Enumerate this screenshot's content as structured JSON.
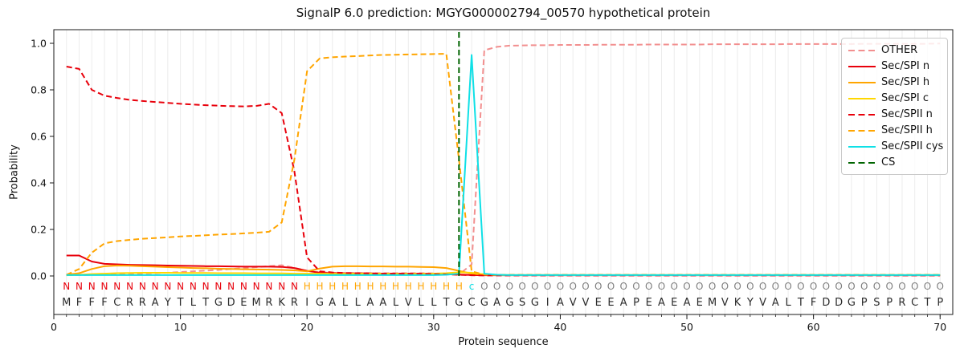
{
  "title": "SignalP 6.0 prediction: MGYG000002794_00570 hypothetical protein",
  "axes": {
    "xlabel": "Protein sequence",
    "ylabel": "Probability",
    "x_ticks": [
      0,
      10,
      20,
      30,
      40,
      50,
      60,
      70
    ],
    "y_ticks": [
      0.0,
      0.2,
      0.4,
      0.6,
      0.8,
      1.0
    ],
    "xlim": [
      0,
      71
    ],
    "ylim_drawn": [
      -0.17,
      1.06
    ],
    "grid": "vertical-per-residue"
  },
  "legend": {
    "position": "upper right",
    "items": [
      {
        "label": "OTHER",
        "color": "#f28f8f",
        "dash": true
      },
      {
        "label": "Sec/SPI n",
        "color": "#e8000b",
        "dash": false
      },
      {
        "label": "Sec/SPI h",
        "color": "#ffa500",
        "dash": false
      },
      {
        "label": "Sec/SPI c",
        "color": "#ffd700",
        "dash": false
      },
      {
        "label": "Sec/SPII n",
        "color": "#e8000b",
        "dash": true
      },
      {
        "label": "Sec/SPII h",
        "color": "#ffa500",
        "dash": true
      },
      {
        "label": "Sec/SPII cys",
        "color": "#0fe0e6",
        "dash": false
      },
      {
        "label": "CS",
        "color": "#006400",
        "dash": true
      }
    ]
  },
  "sequence": {
    "residues": "MFFFCRRAYTLTGDEMRKRIGALLAALVLLTGCGAGSGIAVVEEAPEAEAEMVKYVALTFDDGPSPRCTP",
    "region_labels": "NNNNNNNNNNNNNNNNNNNHHHHHHHHHHHHHcOOOOOOOOOOOOOOOOOOOOOOOOOOOOOOOOOOOOO",
    "label_colors": {
      "N": "#e8000b",
      "H": "#ffa500",
      "c": "#0fe0e6",
      "O": "#7f7f7f"
    },
    "residue_color": "#2b2b2b"
  },
  "chart_data": {
    "type": "line",
    "x_start": 1,
    "x_end": 70,
    "cs_marker": {
      "label": "CS",
      "position": 32,
      "color": "#006400"
    },
    "series": [
      {
        "name": "OTHER",
        "color": "#f28f8f",
        "dash": true,
        "values": [
          0.004,
          0.004,
          0.005,
          0.006,
          0.007,
          0.008,
          0.01,
          0.012,
          0.014,
          0.017,
          0.02,
          0.023,
          0.026,
          0.03,
          0.034,
          0.038,
          0.042,
          0.046,
          0.035,
          0.022,
          0.016,
          0.014,
          0.013,
          0.013,
          0.012,
          0.012,
          0.012,
          0.012,
          0.012,
          0.011,
          0.01,
          0.006,
          0.05,
          0.97,
          0.985,
          0.99,
          0.991,
          0.992,
          0.992,
          0.993,
          0.993,
          0.993,
          0.994,
          0.994,
          0.994,
          0.994,
          0.995,
          0.995,
          0.995,
          0.995,
          0.995,
          0.996,
          0.996,
          0.996,
          0.996,
          0.996,
          0.996,
          0.997,
          0.997,
          0.997,
          0.997,
          0.997,
          0.997,
          0.998,
          0.998,
          0.998,
          0.998,
          0.998,
          0.998,
          0.999
        ]
      },
      {
        "name": "Sec/SPI n",
        "color": "#e8000b",
        "dash": false,
        "values": [
          0.088,
          0.088,
          0.062,
          0.052,
          0.05,
          0.048,
          0.047,
          0.046,
          0.045,
          0.044,
          0.043,
          0.042,
          0.042,
          0.041,
          0.04,
          0.04,
          0.04,
          0.039,
          0.034,
          0.022,
          0.014,
          0.012,
          0.011,
          0.011,
          0.011,
          0.01,
          0.01,
          0.01,
          0.01,
          0.009,
          0.008,
          0.006,
          0.004,
          0.003,
          0.003,
          0.003,
          0.003,
          0.003,
          0.003,
          0.003,
          0.003,
          0.003,
          0.003,
          0.003,
          0.003,
          0.003,
          0.003,
          0.003,
          0.003,
          0.003,
          0.003,
          0.003,
          0.003,
          0.003,
          0.003,
          0.003,
          0.003,
          0.003,
          0.003,
          0.003,
          0.003,
          0.003,
          0.003,
          0.003,
          0.003,
          0.003,
          0.003,
          0.003,
          0.003,
          0.003
        ]
      },
      {
        "name": "Sec/SPI h",
        "color": "#ffa500",
        "dash": false,
        "values": [
          0.005,
          0.012,
          0.03,
          0.042,
          0.045,
          0.044,
          0.042,
          0.04,
          0.038,
          0.036,
          0.034,
          0.033,
          0.031,
          0.03,
          0.029,
          0.028,
          0.027,
          0.026,
          0.024,
          0.02,
          0.032,
          0.04,
          0.042,
          0.042,
          0.041,
          0.041,
          0.04,
          0.04,
          0.039,
          0.038,
          0.034,
          0.022,
          0.01,
          0.005,
          0.004,
          0.004,
          0.004,
          0.004,
          0.004,
          0.004,
          0.004,
          0.004,
          0.004,
          0.004,
          0.004,
          0.004,
          0.004,
          0.004,
          0.004,
          0.004,
          0.004,
          0.004,
          0.004,
          0.004,
          0.004,
          0.004,
          0.004,
          0.004,
          0.004,
          0.004,
          0.004,
          0.004,
          0.004,
          0.004,
          0.004,
          0.004,
          0.004,
          0.004,
          0.004,
          0.004
        ]
      },
      {
        "name": "Sec/SPI c",
        "color": "#ffd700",
        "dash": false,
        "values": [
          0.003,
          0.005,
          0.008,
          0.01,
          0.012,
          0.013,
          0.014,
          0.014,
          0.014,
          0.013,
          0.013,
          0.013,
          0.012,
          0.012,
          0.012,
          0.011,
          0.011,
          0.011,
          0.01,
          0.01,
          0.01,
          0.01,
          0.01,
          0.01,
          0.01,
          0.01,
          0.009,
          0.009,
          0.009,
          0.01,
          0.012,
          0.016,
          0.014,
          0.007,
          0.005,
          0.004,
          0.004,
          0.004,
          0.004,
          0.004,
          0.004,
          0.004,
          0.004,
          0.004,
          0.004,
          0.004,
          0.004,
          0.004,
          0.004,
          0.004,
          0.004,
          0.004,
          0.004,
          0.004,
          0.004,
          0.004,
          0.004,
          0.004,
          0.004,
          0.004,
          0.004,
          0.004,
          0.004,
          0.004,
          0.004,
          0.004,
          0.004,
          0.004,
          0.004,
          0.004
        ]
      },
      {
        "name": "Sec/SPII n",
        "color": "#e8000b",
        "dash": true,
        "values": [
          0.9,
          0.89,
          0.8,
          0.775,
          0.765,
          0.757,
          0.752,
          0.748,
          0.744,
          0.74,
          0.737,
          0.734,
          0.732,
          0.73,
          0.729,
          0.731,
          0.74,
          0.7,
          0.45,
          0.08,
          0.02,
          0.015,
          0.013,
          0.012,
          0.011,
          0.01,
          0.01,
          0.009,
          0.009,
          0.008,
          0.007,
          0.005,
          0.003,
          0.002,
          0.002,
          0.002,
          0.002,
          0.002,
          0.002,
          0.002,
          0.002,
          0.002,
          0.002,
          0.002,
          0.002,
          0.002,
          0.002,
          0.002,
          0.002,
          0.002,
          0.002,
          0.002,
          0.002,
          0.002,
          0.002,
          0.002,
          0.002,
          0.002,
          0.002,
          0.002,
          0.002,
          0.002,
          0.002,
          0.002,
          0.002,
          0.002,
          0.002,
          0.002,
          0.002,
          0.002
        ]
      },
      {
        "name": "Sec/SPII h",
        "color": "#ffa500",
        "dash": true,
        "values": [
          0.005,
          0.03,
          0.1,
          0.14,
          0.15,
          0.155,
          0.16,
          0.163,
          0.166,
          0.17,
          0.172,
          0.175,
          0.178,
          0.18,
          0.183,
          0.186,
          0.19,
          0.23,
          0.5,
          0.88,
          0.935,
          0.94,
          0.943,
          0.945,
          0.948,
          0.95,
          0.951,
          0.952,
          0.953,
          0.954,
          0.955,
          0.5,
          0.02,
          0.006,
          0.005,
          0.005,
          0.005,
          0.005,
          0.005,
          0.005,
          0.005,
          0.005,
          0.005,
          0.005,
          0.005,
          0.005,
          0.005,
          0.005,
          0.005,
          0.005,
          0.005,
          0.005,
          0.005,
          0.005,
          0.005,
          0.005,
          0.005,
          0.005,
          0.005,
          0.005,
          0.005,
          0.005,
          0.005,
          0.005,
          0.005,
          0.005,
          0.005,
          0.005,
          0.005,
          0.005
        ]
      },
      {
        "name": "Sec/SPII cys",
        "color": "#0fe0e6",
        "dash": false,
        "values": [
          0.004,
          0.004,
          0.004,
          0.004,
          0.004,
          0.004,
          0.004,
          0.004,
          0.004,
          0.004,
          0.004,
          0.004,
          0.004,
          0.004,
          0.004,
          0.004,
          0.004,
          0.004,
          0.004,
          0.004,
          0.004,
          0.004,
          0.004,
          0.004,
          0.004,
          0.004,
          0.004,
          0.004,
          0.004,
          0.004,
          0.005,
          0.01,
          0.95,
          0.01,
          0.005,
          0.004,
          0.004,
          0.004,
          0.004,
          0.004,
          0.004,
          0.004,
          0.004,
          0.004,
          0.004,
          0.004,
          0.004,
          0.004,
          0.004,
          0.004,
          0.004,
          0.004,
          0.004,
          0.004,
          0.004,
          0.004,
          0.004,
          0.004,
          0.004,
          0.004,
          0.004,
          0.004,
          0.004,
          0.004,
          0.004,
          0.004,
          0.004,
          0.004,
          0.004,
          0.004
        ]
      }
    ]
  }
}
